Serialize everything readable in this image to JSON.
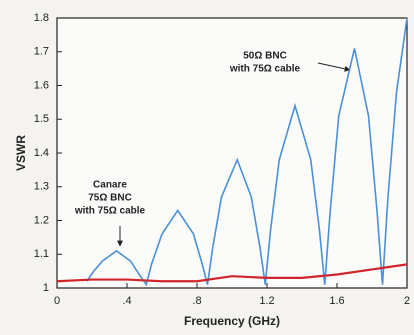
{
  "chart_data": {
    "type": "line",
    "xlabel": "Frequency (GHz)",
    "ylabel": "VSWR",
    "xlim": [
      0,
      2
    ],
    "ylim": [
      1,
      1.8
    ],
    "xticks": [
      0,
      {
        "value": 0.4,
        "label": ".4"
      },
      {
        "value": 0.8,
        "label": ".8"
      },
      1.2,
      1.6,
      2
    ],
    "yticks": [
      1,
      1.1,
      1.2,
      1.3,
      1.4,
      1.5,
      1.6,
      1.7,
      1.8
    ],
    "grid": false,
    "annotations": [
      {
        "lines": [
          "50Ω BNC",
          "with 75Ω cable"
        ]
      },
      {
        "lines": [
          "Canare",
          "75Ω BNC",
          "with 75Ω cable"
        ]
      }
    ],
    "series": [
      {
        "color": "#4a90d9",
        "x": [
          0.17,
          0.21,
          0.26,
          0.34,
          0.42,
          0.47,
          0.51,
          0.54,
          0.6,
          0.69,
          0.78,
          0.83,
          0.86,
          0.89,
          0.94,
          1.03,
          1.11,
          1.16,
          1.19,
          1.22,
          1.27,
          1.36,
          1.45,
          1.5,
          1.53,
          1.56,
          1.61,
          1.7,
          1.78,
          1.83,
          1.86,
          1.89,
          1.94,
          2.0
        ],
        "values": [
          1.02,
          1.05,
          1.08,
          1.11,
          1.08,
          1.04,
          1.01,
          1.07,
          1.16,
          1.23,
          1.16,
          1.07,
          1.01,
          1.12,
          1.27,
          1.38,
          1.27,
          1.12,
          1.01,
          1.17,
          1.38,
          1.54,
          1.38,
          1.17,
          1.01,
          1.22,
          1.51,
          1.71,
          1.51,
          1.22,
          1.01,
          1.26,
          1.58,
          1.8
        ]
      },
      {
        "color": "#d0262b",
        "x": [
          0,
          0.2,
          0.4,
          0.6,
          0.8,
          1.0,
          1.2,
          1.4,
          1.6,
          1.8,
          2.0
        ],
        "values": [
          1.02,
          1.025,
          1.025,
          1.02,
          1.02,
          1.035,
          1.03,
          1.03,
          1.04,
          1.055,
          1.07
        ]
      }
    ]
  }
}
